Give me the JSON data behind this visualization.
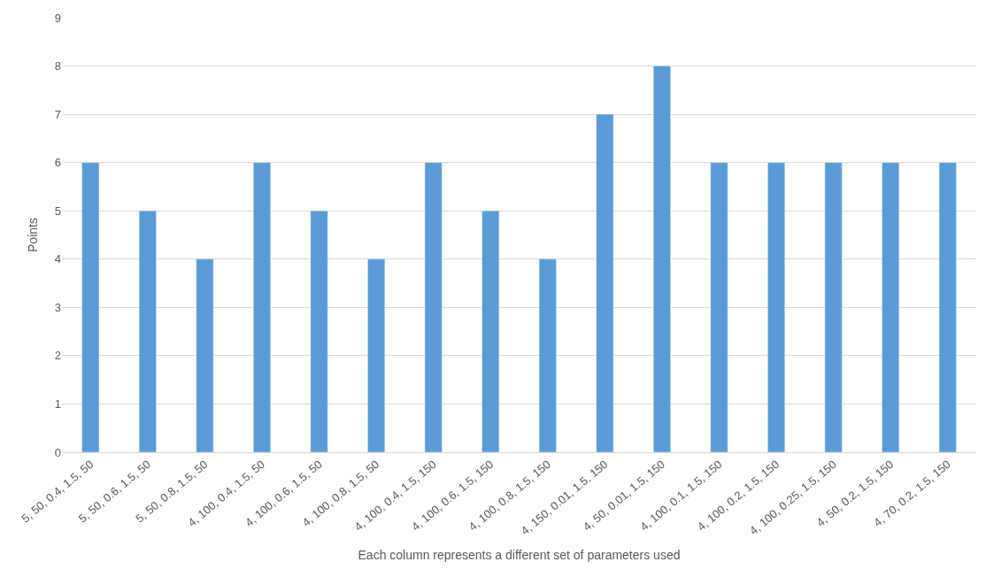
{
  "chart_data": {
    "type": "bar",
    "xlabel": "Each column represents a different set of parameters used",
    "ylabel": "Points",
    "categories": [
      "5, 50, 0.4, 1.5, 50",
      "5, 50, 0.6, 1.5, 50",
      "5, 50, 0.8, 1.5, 50",
      "4, 100, 0.4, 1.5, 50",
      "4, 100, 0.6, 1.5, 50",
      "4, 100, 0.8, 1.5, 50",
      "4, 100, 0.4, 1.5, 150",
      "4, 100, 0.6, 1.5, 150",
      "4, 100, 0.8, 1.5, 150",
      "4, 150, 0.01, 1.5, 150",
      "4, 50, 0.01, 1.5, 150",
      "4, 100, 0.1, 1.5, 150",
      "4, 100, 0.2, 1.5, 150",
      "4, 100, 0.25, 1.5, 150",
      "4, 50, 0.2, 1.5, 150",
      "4, 70, 0.2, 1.5, 150"
    ],
    "values": [
      6,
      5,
      4,
      6,
      5,
      4,
      6,
      5,
      4,
      7,
      8,
      6,
      6,
      6,
      6,
      6
    ],
    "color": "#5b9bd5",
    "ylim": [
      0,
      9
    ],
    "yticks": [
      0,
      1,
      2,
      3,
      4,
      5,
      6,
      7,
      8,
      9
    ],
    "grid": "y"
  }
}
